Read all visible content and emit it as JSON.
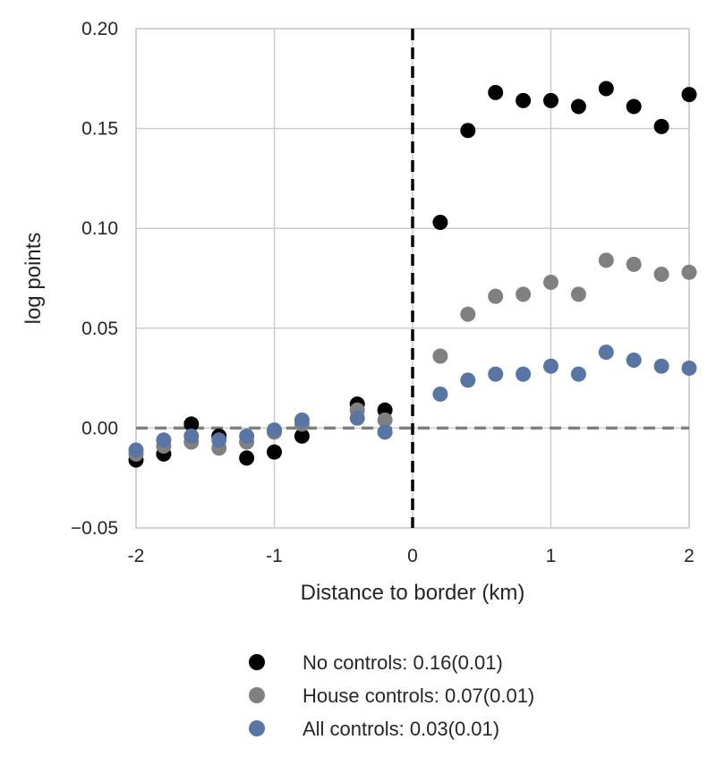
{
  "chart_data": {
    "type": "scatter",
    "title": "",
    "xlabel": "Distance to border (km)",
    "ylabel": "log points",
    "xlim": [
      -2,
      2
    ],
    "ylim": [
      -0.05,
      0.2
    ],
    "xticks": [
      -2,
      -1,
      0,
      1,
      2
    ],
    "xtick_labels": [
      "-2",
      "-1",
      "0",
      "1",
      "2"
    ],
    "yticks": [
      -0.05,
      0.0,
      0.05,
      0.1,
      0.15,
      0.2
    ],
    "ytick_labels": [
      "−0.05",
      "0.00",
      "0.05",
      "0.10",
      "0.15",
      "0.20"
    ],
    "grid": true,
    "legend_position": "bottom",
    "reference_lines": [
      {
        "orientation": "horizontal",
        "value": 0,
        "style": "dashed",
        "color": "#808080"
      },
      {
        "orientation": "vertical",
        "value": 0,
        "style": "dashed",
        "color": "#000000"
      }
    ],
    "series": [
      {
        "name": "No controls:    0.16(0.01)",
        "color": "#000000",
        "x": [
          -2.0,
          -1.8,
          -1.6,
          -1.4,
          -1.2,
          -1.0,
          -0.8,
          -0.4,
          -0.2,
          0.2,
          0.4,
          0.6,
          0.8,
          1.0,
          1.2,
          1.4,
          1.6,
          1.8,
          2.0
        ],
        "y": [
          -0.016,
          -0.013,
          0.002,
          -0.004,
          -0.015,
          -0.012,
          -0.004,
          0.012,
          0.009,
          0.103,
          0.149,
          0.168,
          0.164,
          0.164,
          0.161,
          0.17,
          0.161,
          0.151,
          0.167
        ]
      },
      {
        "name": "House controls: 0.07(0.01)",
        "color": "#808080",
        "x": [
          -2.0,
          -1.8,
          -1.6,
          -1.4,
          -1.2,
          -1.0,
          -0.8,
          -0.4,
          -0.2,
          0.2,
          0.4,
          0.6,
          0.8,
          1.0,
          1.2,
          1.4,
          1.6,
          1.8,
          2.0
        ],
        "y": [
          -0.013,
          -0.009,
          -0.007,
          -0.01,
          -0.007,
          -0.002,
          0.002,
          0.009,
          0.004,
          0.036,
          0.057,
          0.066,
          0.067,
          0.073,
          0.067,
          0.084,
          0.082,
          0.077,
          0.078
        ]
      },
      {
        "name": "All controls: 0.03(0.01)",
        "color": "#5975a4",
        "x": [
          -2.0,
          -1.8,
          -1.6,
          -1.4,
          -1.2,
          -1.0,
          -0.8,
          -0.4,
          -0.2,
          0.2,
          0.4,
          0.6,
          0.8,
          1.0,
          1.2,
          1.4,
          1.6,
          1.8,
          2.0
        ],
        "y": [
          -0.011,
          -0.006,
          -0.004,
          -0.006,
          -0.004,
          -0.001,
          0.004,
          0.005,
          -0.002,
          0.017,
          0.024,
          0.027,
          0.027,
          0.031,
          0.027,
          0.038,
          0.034,
          0.031,
          0.03
        ]
      }
    ]
  }
}
